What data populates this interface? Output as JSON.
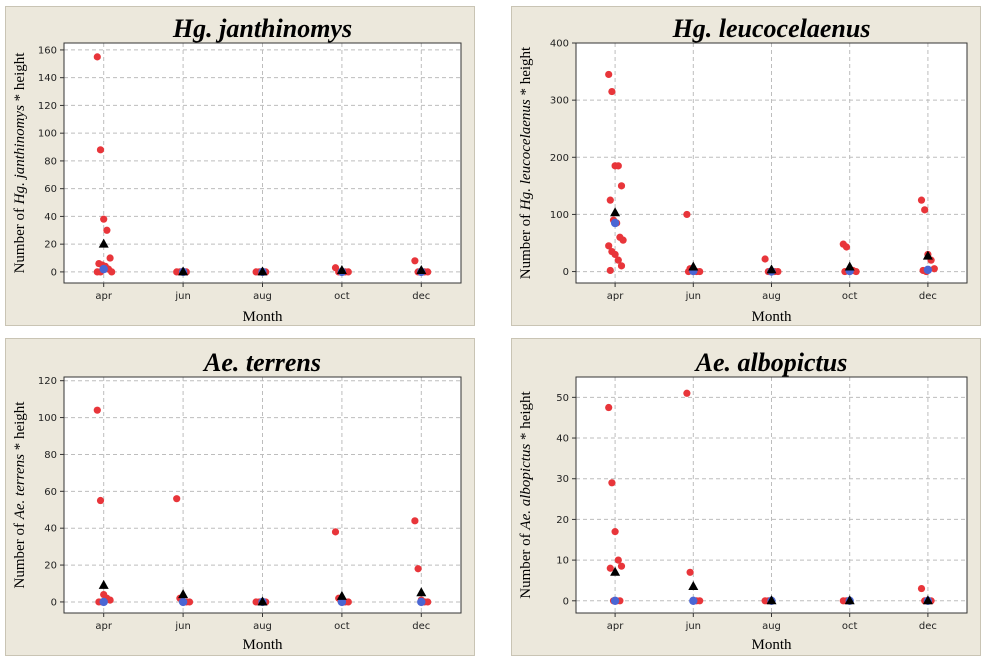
{
  "chart_data": [
    {
      "type": "scatter",
      "title": "Hg. janthinomys",
      "xlabel": "Month",
      "ylabel_prefix": "Number of ",
      "ylabel_species": "Hg. janthinomys",
      "ylabel_suffix": " * height",
      "categories": [
        "apr",
        "jun",
        "aug",
        "oct",
        "dec"
      ],
      "ylim": [
        -8,
        165
      ],
      "yticks": [
        0,
        20,
        40,
        60,
        80,
        100,
        120,
        140,
        160
      ],
      "grid": true,
      "observations": [
        [
          "apr",
          155
        ],
        [
          "apr",
          88
        ],
        [
          "apr",
          38
        ],
        [
          "apr",
          30
        ],
        [
          "apr",
          10
        ],
        [
          "apr",
          6
        ],
        [
          "apr",
          5
        ],
        [
          "apr",
          4
        ],
        [
          "apr",
          2
        ],
        [
          "apr",
          0
        ],
        [
          "apr",
          0
        ],
        [
          "apr",
          0
        ],
        [
          "jun",
          0
        ],
        [
          "jun",
          0
        ],
        [
          "jun",
          0
        ],
        [
          "jun",
          0
        ],
        [
          "aug",
          0
        ],
        [
          "aug",
          0
        ],
        [
          "aug",
          0
        ],
        [
          "aug",
          0
        ],
        [
          "oct",
          3
        ],
        [
          "oct",
          0
        ],
        [
          "oct",
          0
        ],
        [
          "oct",
          0
        ],
        [
          "oct",
          0
        ],
        [
          "dec",
          8
        ],
        [
          "dec",
          0
        ],
        [
          "dec",
          0
        ],
        [
          "dec",
          0
        ],
        [
          "dec",
          0
        ]
      ],
      "means": [
        [
          "apr",
          20
        ],
        [
          "jun",
          0
        ],
        [
          "aug",
          0
        ],
        [
          "oct",
          1
        ],
        [
          "dec",
          1
        ]
      ],
      "medians": [
        [
          "apr",
          2
        ],
        [
          "jun",
          0
        ],
        [
          "aug",
          0
        ],
        [
          "oct",
          0
        ],
        [
          "dec",
          0
        ]
      ]
    },
    {
      "type": "scatter",
      "title": "Hg. leucocelaenus",
      "xlabel": "Month",
      "ylabel_prefix": "Number of ",
      "ylabel_species": "Hg. leucocelaenus",
      "ylabel_suffix": " * height",
      "categories": [
        "apr",
        "jun",
        "aug",
        "oct",
        "dec"
      ],
      "ylim": [
        -20,
        400
      ],
      "yticks": [
        0,
        100,
        200,
        300,
        400
      ],
      "grid": true,
      "observations": [
        [
          "apr",
          345
        ],
        [
          "apr",
          315
        ],
        [
          "apr",
          185
        ],
        [
          "apr",
          185
        ],
        [
          "apr",
          150
        ],
        [
          "apr",
          125
        ],
        [
          "apr",
          90
        ],
        [
          "apr",
          85
        ],
        [
          "apr",
          60
        ],
        [
          "apr",
          55
        ],
        [
          "apr",
          45
        ],
        [
          "apr",
          35
        ],
        [
          "apr",
          30
        ],
        [
          "apr",
          20
        ],
        [
          "apr",
          10
        ],
        [
          "apr",
          2
        ],
        [
          "jun",
          100
        ],
        [
          "jun",
          5
        ],
        [
          "jun",
          2
        ],
        [
          "jun",
          0
        ],
        [
          "jun",
          0
        ],
        [
          "jun",
          0
        ],
        [
          "aug",
          22
        ],
        [
          "aug",
          0
        ],
        [
          "aug",
          0
        ],
        [
          "aug",
          0
        ],
        [
          "aug",
          0
        ],
        [
          "oct",
          48
        ],
        [
          "oct",
          43
        ],
        [
          "oct",
          3
        ],
        [
          "oct",
          2
        ],
        [
          "oct",
          0
        ],
        [
          "oct",
          0
        ],
        [
          "dec",
          125
        ],
        [
          "dec",
          108
        ],
        [
          "dec",
          30
        ],
        [
          "dec",
          20
        ],
        [
          "dec",
          5
        ],
        [
          "dec",
          2
        ],
        [
          "dec",
          0
        ]
      ],
      "means": [
        [
          "apr",
          103
        ],
        [
          "jun",
          8
        ],
        [
          "aug",
          3
        ],
        [
          "oct",
          8
        ],
        [
          "dec",
          27
        ]
      ],
      "medians": [
        [
          "apr",
          85
        ],
        [
          "jun",
          1
        ],
        [
          "aug",
          0
        ],
        [
          "oct",
          1
        ],
        [
          "dec",
          3
        ]
      ]
    },
    {
      "type": "scatter",
      "title": "Ae. terrens",
      "xlabel": "Month",
      "ylabel_prefix": "Number of ",
      "ylabel_species": "Ae. terrens",
      "ylabel_suffix": " * height",
      "categories": [
        "apr",
        "jun",
        "aug",
        "oct",
        "dec"
      ],
      "ylim": [
        -6,
        122
      ],
      "yticks": [
        0,
        20,
        40,
        60,
        80,
        100,
        120
      ],
      "grid": true,
      "observations": [
        [
          "apr",
          104
        ],
        [
          "apr",
          55
        ],
        [
          "apr",
          4
        ],
        [
          "apr",
          2
        ],
        [
          "apr",
          1
        ],
        [
          "apr",
          0
        ],
        [
          "apr",
          0
        ],
        [
          "jun",
          56
        ],
        [
          "jun",
          2
        ],
        [
          "jun",
          0
        ],
        [
          "jun",
          0
        ],
        [
          "jun",
          0
        ],
        [
          "aug",
          0
        ],
        [
          "aug",
          0
        ],
        [
          "aug",
          0
        ],
        [
          "aug",
          0
        ],
        [
          "oct",
          38
        ],
        [
          "oct",
          2
        ],
        [
          "oct",
          0
        ],
        [
          "oct",
          0
        ],
        [
          "oct",
          0
        ],
        [
          "dec",
          44
        ],
        [
          "dec",
          18
        ],
        [
          "dec",
          1
        ],
        [
          "dec",
          0
        ],
        [
          "dec",
          0
        ]
      ],
      "means": [
        [
          "apr",
          9
        ],
        [
          "jun",
          4
        ],
        [
          "aug",
          0
        ],
        [
          "oct",
          3
        ],
        [
          "dec",
          5
        ]
      ],
      "medians": [
        [
          "apr",
          0
        ],
        [
          "jun",
          0
        ],
        [
          "aug",
          0
        ],
        [
          "oct",
          0
        ],
        [
          "dec",
          0
        ]
      ]
    },
    {
      "type": "scatter",
      "title": "Ae. albopictus",
      "xlabel": "Month",
      "ylabel_prefix": "Number of ",
      "ylabel_species": "Ae. albopictus",
      "ylabel_suffix": " * height",
      "categories": [
        "apr",
        "jun",
        "aug",
        "oct",
        "dec"
      ],
      "ylim": [
        -3,
        55
      ],
      "yticks": [
        0,
        10,
        20,
        30,
        40,
        50
      ],
      "grid": true,
      "observations": [
        [
          "apr",
          47.5
        ],
        [
          "apr",
          29
        ],
        [
          "apr",
          17
        ],
        [
          "apr",
          10
        ],
        [
          "apr",
          8.5
        ],
        [
          "apr",
          8
        ],
        [
          "apr",
          0
        ],
        [
          "apr",
          0
        ],
        [
          "apr",
          0
        ],
        [
          "jun",
          51
        ],
        [
          "jun",
          7
        ],
        [
          "jun",
          0
        ],
        [
          "jun",
          0
        ],
        [
          "jun",
          0
        ],
        [
          "aug",
          0
        ],
        [
          "aug",
          0
        ],
        [
          "aug",
          0
        ],
        [
          "oct",
          0
        ],
        [
          "oct",
          0
        ],
        [
          "oct",
          0
        ],
        [
          "dec",
          3
        ],
        [
          "dec",
          0
        ],
        [
          "dec",
          0
        ],
        [
          "dec",
          0
        ]
      ],
      "means": [
        [
          "apr",
          7
        ],
        [
          "jun",
          3.5
        ],
        [
          "aug",
          0
        ],
        [
          "oct",
          0
        ],
        [
          "dec",
          0
        ]
      ],
      "medians": [
        [
          "apr",
          0
        ],
        [
          "jun",
          0
        ],
        [
          "aug",
          0
        ],
        [
          "oct",
          0
        ],
        [
          "dec",
          0
        ]
      ]
    }
  ],
  "colors": {
    "observation": "#e8353a",
    "mean": "#000000",
    "median": "#4a66d4"
  }
}
